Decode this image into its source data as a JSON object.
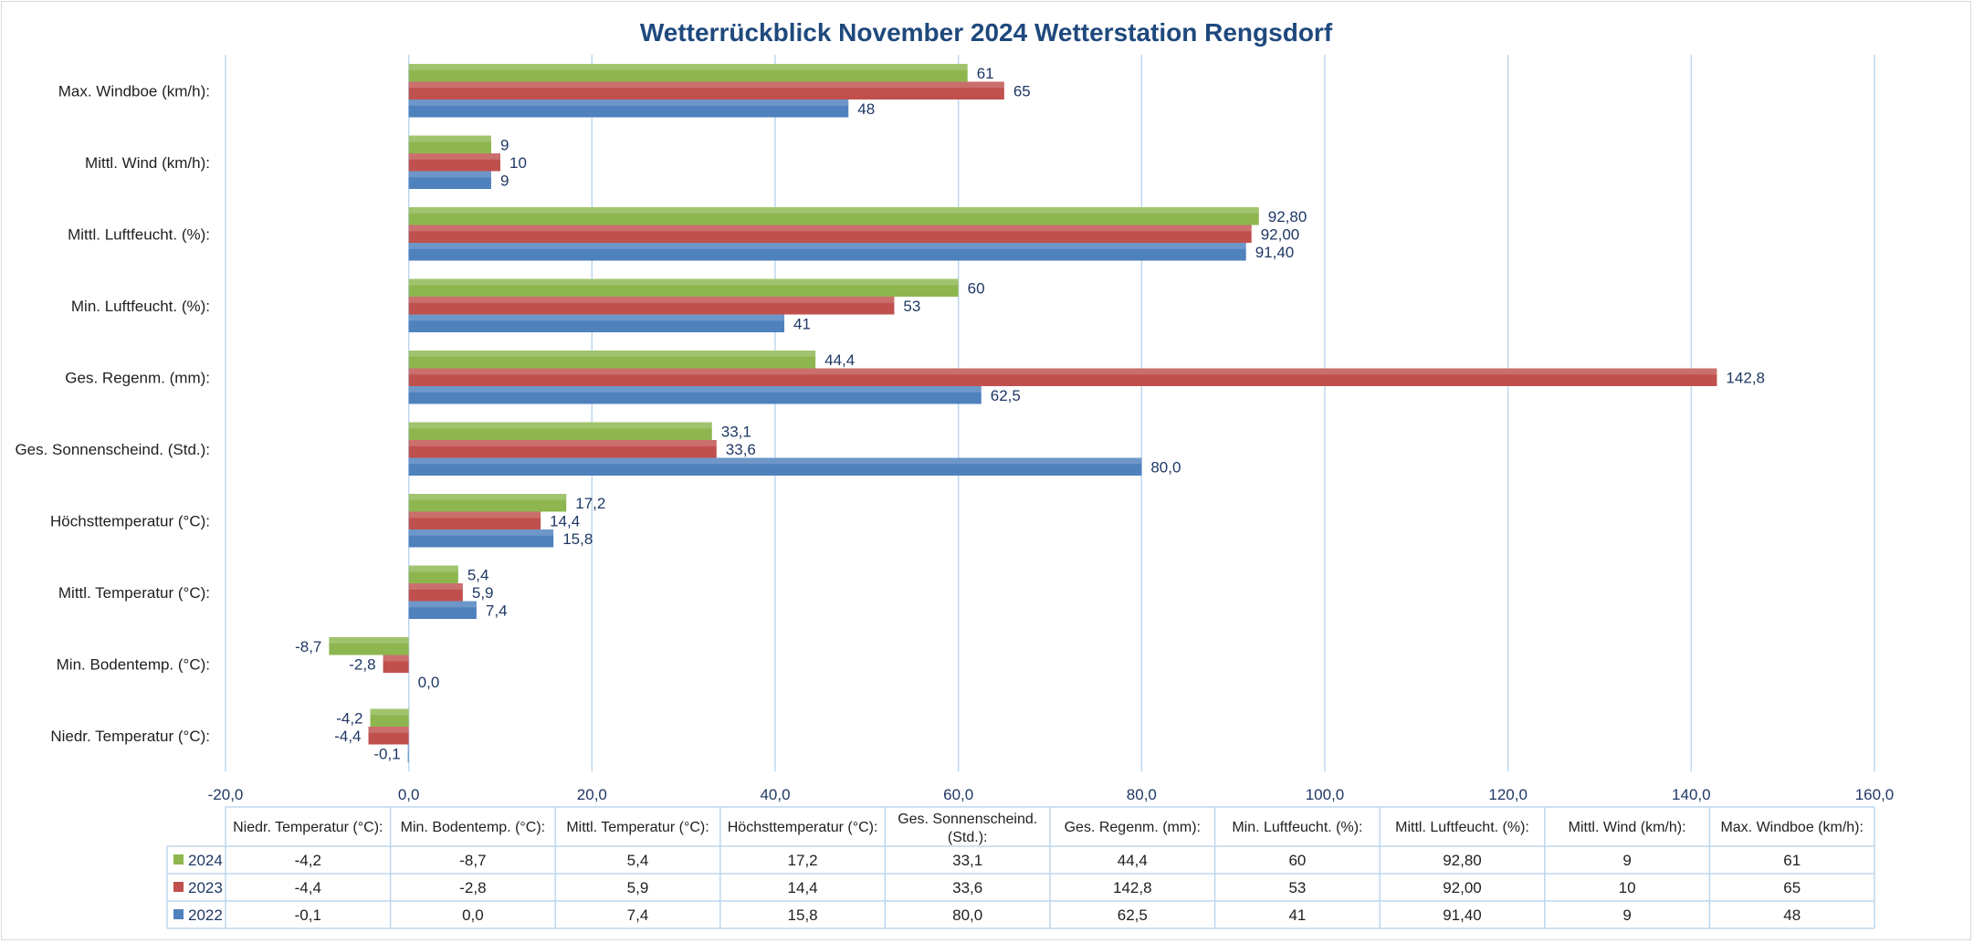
{
  "chart_data": {
    "type": "bar",
    "orientation": "horizontal",
    "title": "Wetterrückblick November 2024 Wetterstation Rengsdorf",
    "categories": [
      "Niedr. Temperatur (°C):",
      "Min. Bodentemp. (°C):",
      "Mittl. Temperatur (°C):",
      "Höchsttemperatur (°C):",
      "Ges. Sonnenscheind. (Std.):",
      "Ges. Regenm. (mm):",
      "Min. Luftfeucht. (%):",
      "Mittl. Luftfeucht. (%):",
      "Mittl. Wind (km/h):",
      "Max. Windboe (km/h):"
    ],
    "series": [
      {
        "name": "2024",
        "color": "#8DB64F",
        "values": [
          -4.2,
          -8.7,
          5.4,
          17.2,
          33.1,
          44.4,
          60,
          92.8,
          9,
          61
        ],
        "labels": [
          "-4,2",
          "-8,7",
          "5,4",
          "17,2",
          "33,1",
          "44,4",
          "60",
          "92,80",
          "9",
          "61"
        ]
      },
      {
        "name": "2023",
        "color": "#C0504D",
        "values": [
          -4.4,
          -2.8,
          5.9,
          14.4,
          33.6,
          142.8,
          53,
          92.0,
          10,
          65
        ],
        "labels": [
          "-4,4",
          "-2,8",
          "5,9",
          "14,4",
          "33,6",
          "142,8",
          "53",
          "92,00",
          "10",
          "65"
        ]
      },
      {
        "name": "2022",
        "color": "#4F81BD",
        "values": [
          -0.1,
          0.0,
          7.4,
          15.8,
          80.0,
          62.5,
          41,
          91.4,
          9,
          48
        ],
        "labels": [
          "-0,1",
          "0,0",
          "7,4",
          "15,8",
          "80,0",
          "62,5",
          "41",
          "91,40",
          "9",
          "48"
        ]
      }
    ],
    "xlim": [
      -20,
      160
    ],
    "xticks": [
      -20,
      0,
      20,
      40,
      60,
      80,
      100,
      120,
      140,
      160
    ],
    "xtick_labels": [
      "-20,0",
      "0,0",
      "20,0",
      "40,0",
      "60,0",
      "80,0",
      "100,0",
      "120,0",
      "140,0",
      "160,0"
    ],
    "grid": true,
    "legend": "data-table below chart",
    "table_headers": [
      "Niedr. Temperatur (°C):",
      "Min. Bodentemp. (°C):",
      "Mittl. Temperatur (°C):",
      "Höchsttemperatur (°C):",
      "Ges. Sonnenscheind. (Std.):",
      "Ges. Regenm. (mm):",
      "Min. Luftfeucht. (%):",
      "Mittl. Luftfeucht. (%):",
      "Mittl. Wind (km/h):",
      "Max. Windboe (km/h):"
    ]
  },
  "colors": {
    "title": "#1F497D",
    "label_text": "#1F3864",
    "grid": "#BDD7EE",
    "table_border": "#BDD7EE"
  }
}
